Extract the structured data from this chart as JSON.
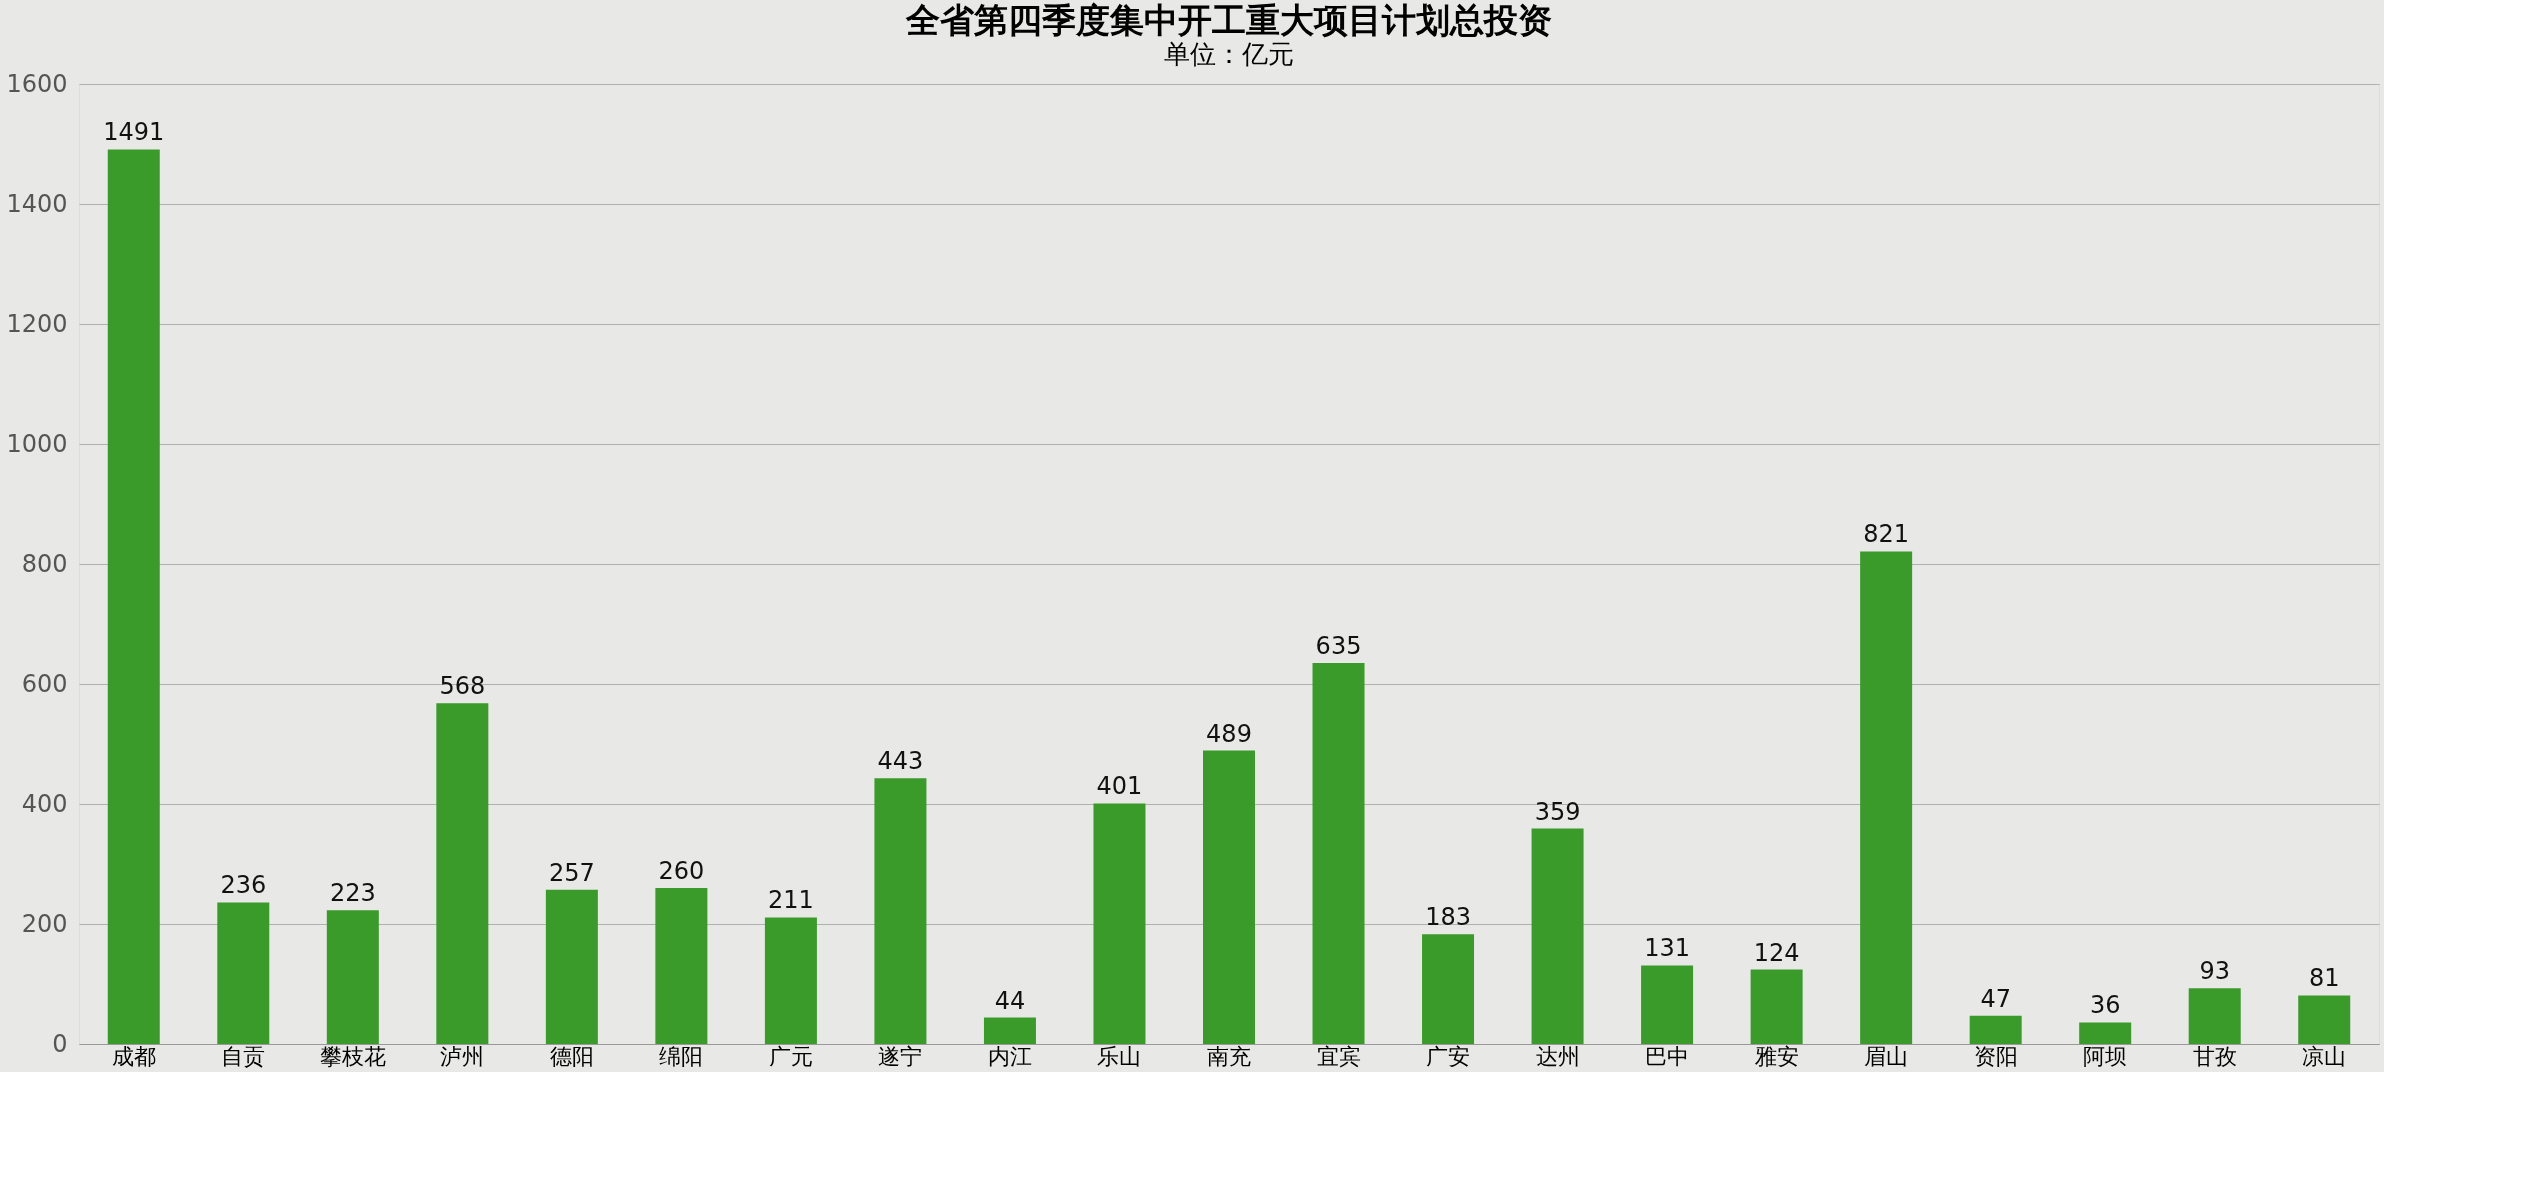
{
  "chart_data": {
    "type": "bar",
    "title": "全省第四季度集中开工重大项目计划总投资",
    "subtitle": "单位：亿元",
    "categories": [
      "成都",
      "自贡",
      "攀枝花",
      "泸州",
      "德阳",
      "绵阳",
      "广元",
      "遂宁",
      "内江",
      "乐山",
      "南充",
      "宜宾",
      "广安",
      "达州",
      "巴中",
      "雅安",
      "眉山",
      "资阳",
      "阿坝",
      "甘孜",
      "凉山"
    ],
    "values": [
      1491,
      236,
      223,
      568,
      257,
      260,
      211,
      443,
      44,
      401,
      489,
      635,
      183,
      359,
      131,
      124,
      821,
      47,
      36,
      93,
      81
    ],
    "color": "#3a9a2a",
    "ylim": [
      0,
      1600
    ],
    "yticks": [
      0,
      200,
      400,
      600,
      800,
      1000,
      1200,
      1400,
      1600
    ],
    "grid": "y",
    "data_labels": true
  }
}
